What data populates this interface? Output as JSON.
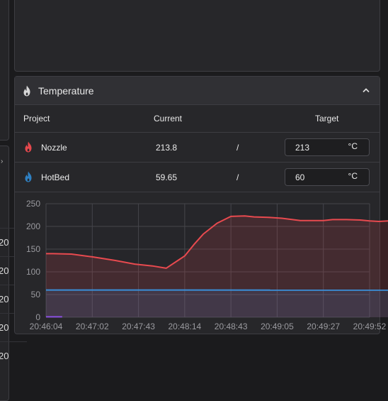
{
  "left_panel": {
    "row_labels": [
      "20",
      "20",
      "20",
      "20",
      "20"
    ]
  },
  "temperature_panel": {
    "title": "Temperature",
    "icon": "flame-icon",
    "collapse_icon": "chevron-up-icon",
    "columns": {
      "project": "Project",
      "current": "Current",
      "target": "Target"
    },
    "rows": [
      {
        "name": "Nozzle",
        "icon": "flame-icon",
        "icon_color": "#e5484d",
        "current": "213.8",
        "separator": "/",
        "target": "213",
        "unit": "°C"
      },
      {
        "name": "HotBed",
        "icon": "flame-icon",
        "icon_color": "#2f80c2",
        "current": "59.65",
        "separator": "/",
        "target": "60",
        "unit": "°C"
      }
    ]
  },
  "chart_data": {
    "type": "area",
    "x_labels": [
      "20:46:04",
      "20:47:02",
      "20:47:43",
      "20:48:14",
      "20:48:43",
      "20:49:05",
      "20:49:27",
      "20:49:52"
    ],
    "ylim": [
      0,
      250
    ],
    "y_ticks": [
      0,
      50,
      100,
      150,
      200,
      250
    ],
    "grid": true,
    "series": [
      {
        "color": "#e84a4f",
        "x": [
          0,
          0.15,
          0.55,
          1.0,
          1.5,
          1.92,
          2.3,
          2.6,
          3.0,
          3.2,
          3.4,
          3.7,
          4.0,
          4.3,
          4.5,
          4.8,
          5.1,
          5.5,
          5.8,
          6.0,
          6.2,
          6.5,
          6.8,
          7.0,
          7.2,
          7.4,
          7.6,
          7.8,
          8.0
        ],
        "y": [
          140,
          140,
          139,
          133,
          125,
          117,
          113,
          108,
          135,
          160,
          183,
          207,
          222,
          223,
          221,
          220,
          218,
          213,
          213,
          213,
          215,
          215,
          214,
          212,
          211,
          212,
          212,
          212,
          214
        ]
      },
      {
        "color": "#3a8fd9",
        "x": [
          0,
          8.0
        ],
        "y": [
          60,
          59.65
        ]
      },
      {
        "color": "#8a4fe0",
        "x": [
          0,
          0.35
        ],
        "y": [
          1,
          1
        ]
      }
    ]
  }
}
